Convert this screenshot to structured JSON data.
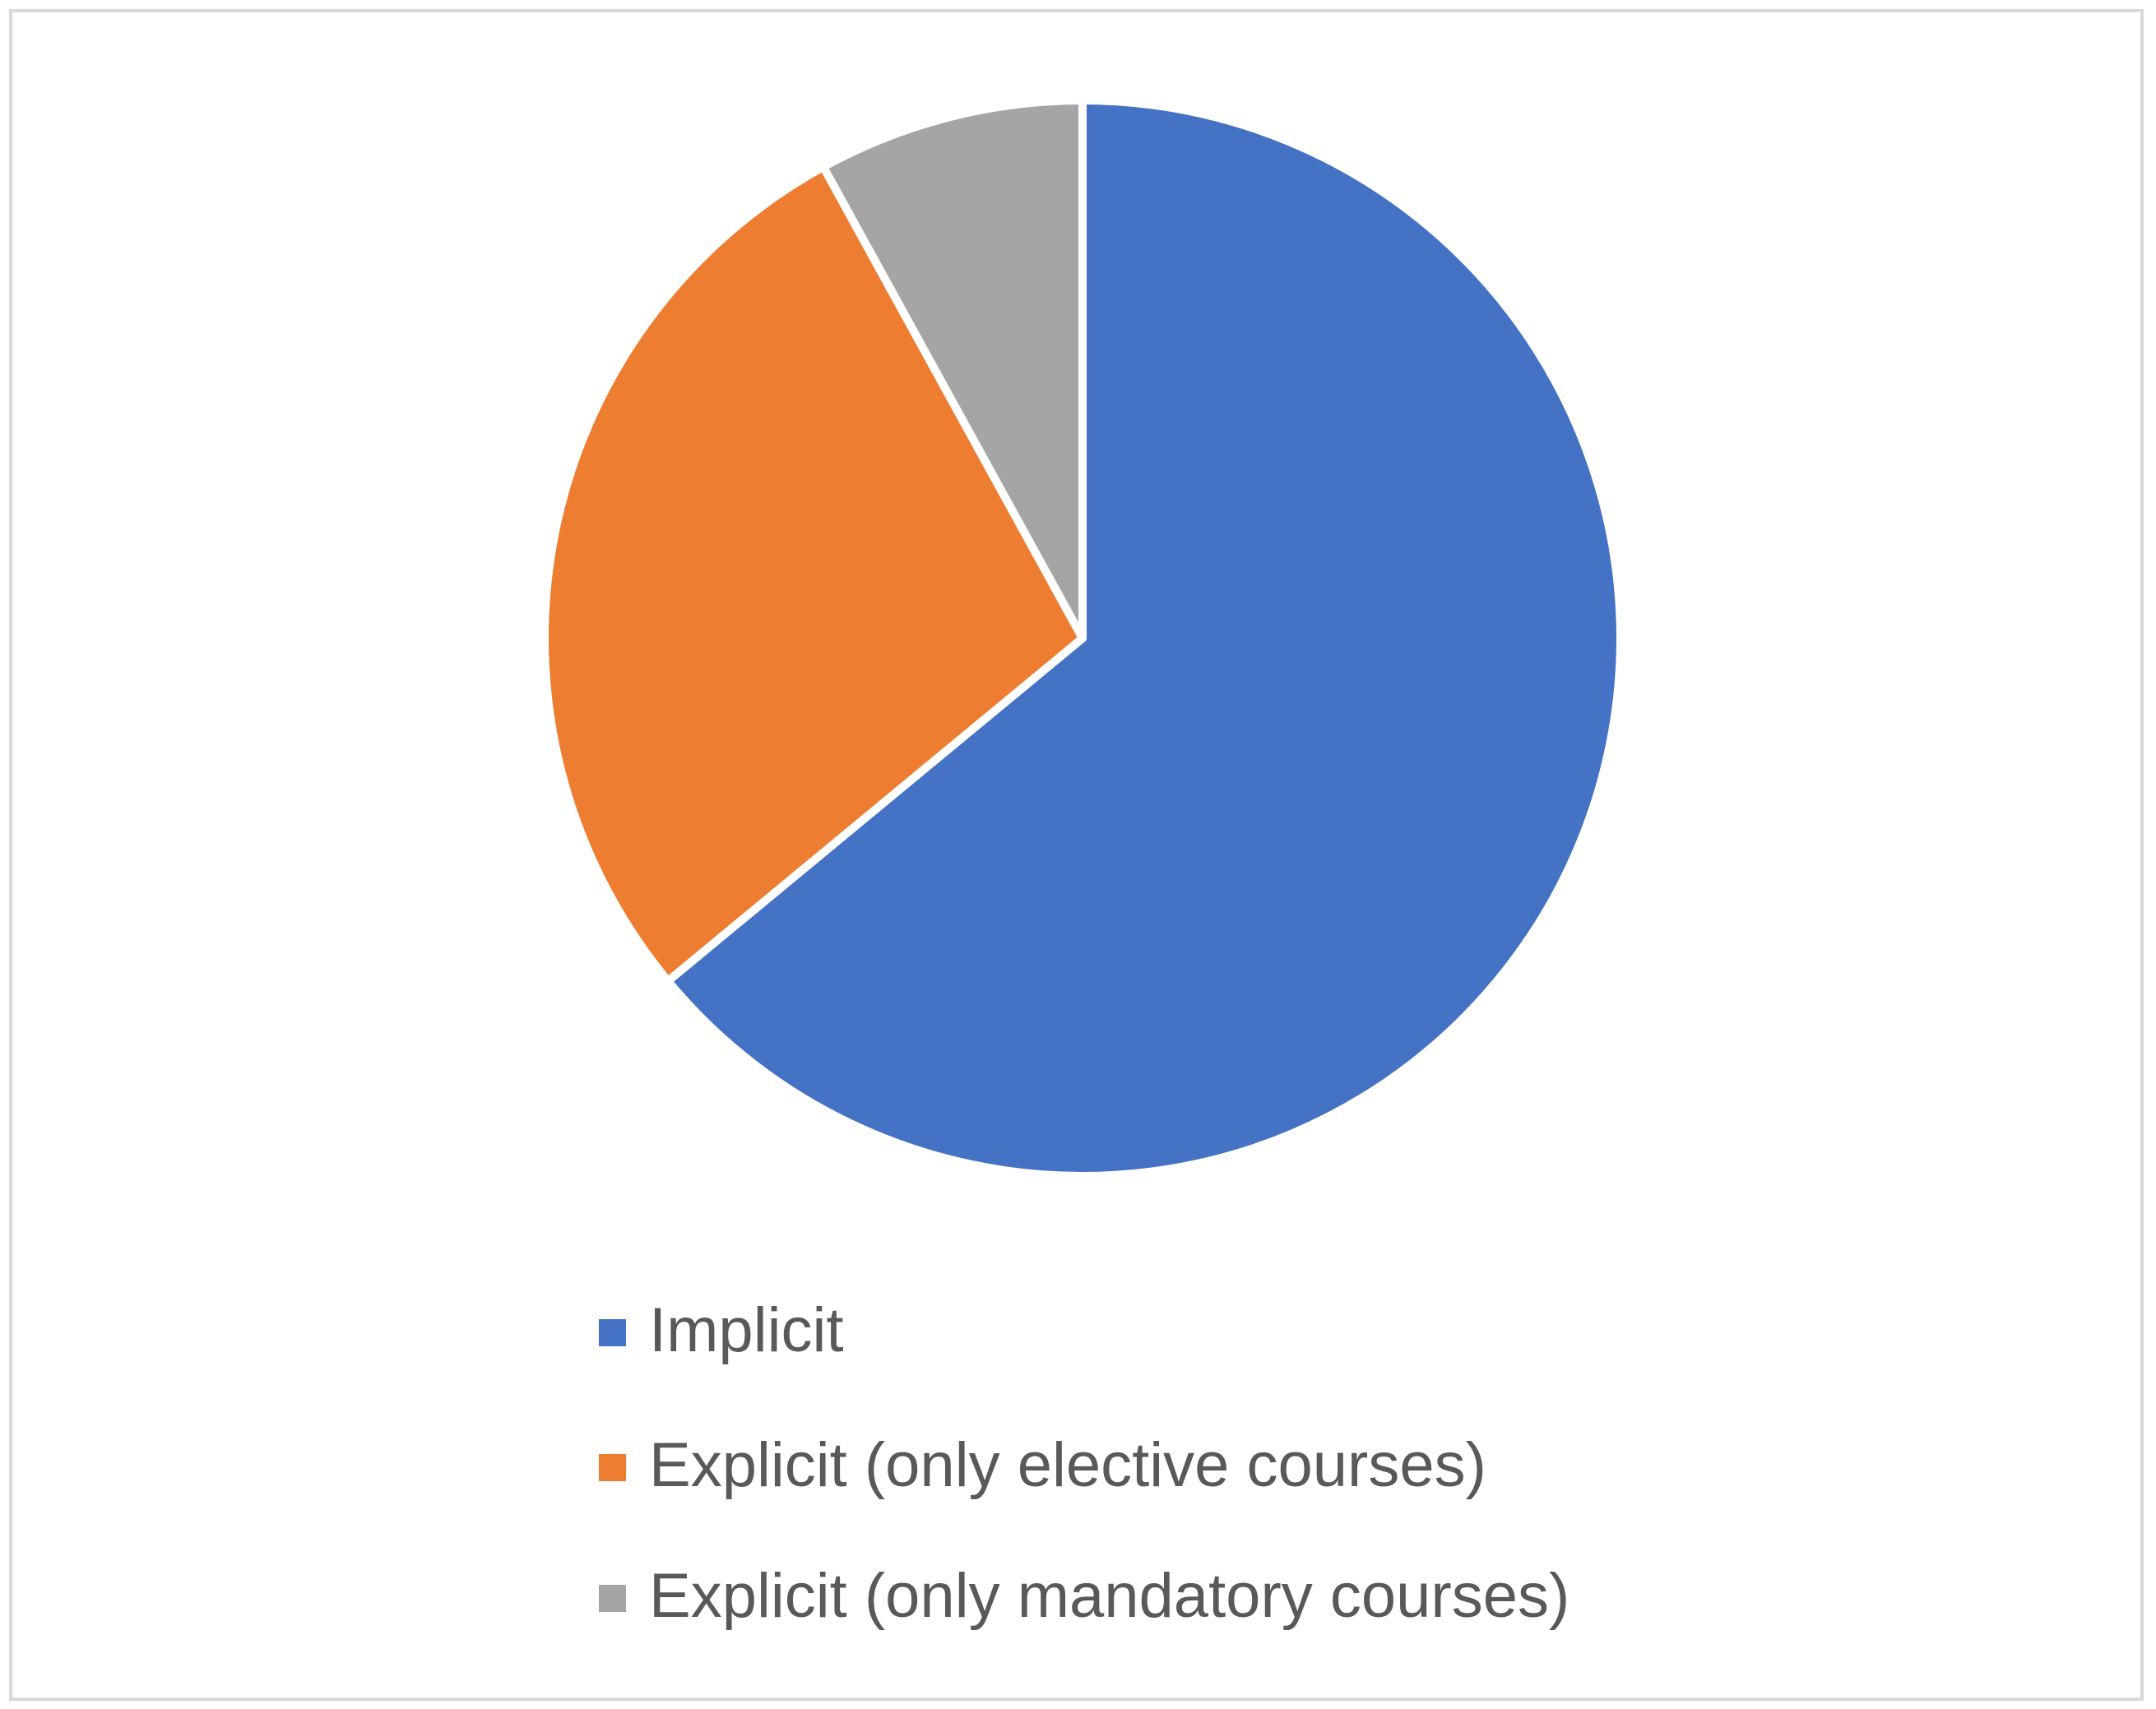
{
  "chart_data": {
    "type": "pie",
    "categories": [
      "Implicit",
      "Explicit (only elective courses)",
      "Explicit (only mandatory courses)"
    ],
    "values": [
      64,
      28,
      8
    ],
    "colors": [
      "#4472c4",
      "#ed7d31",
      "#a5a5a5"
    ],
    "legend": "bottom"
  }
}
